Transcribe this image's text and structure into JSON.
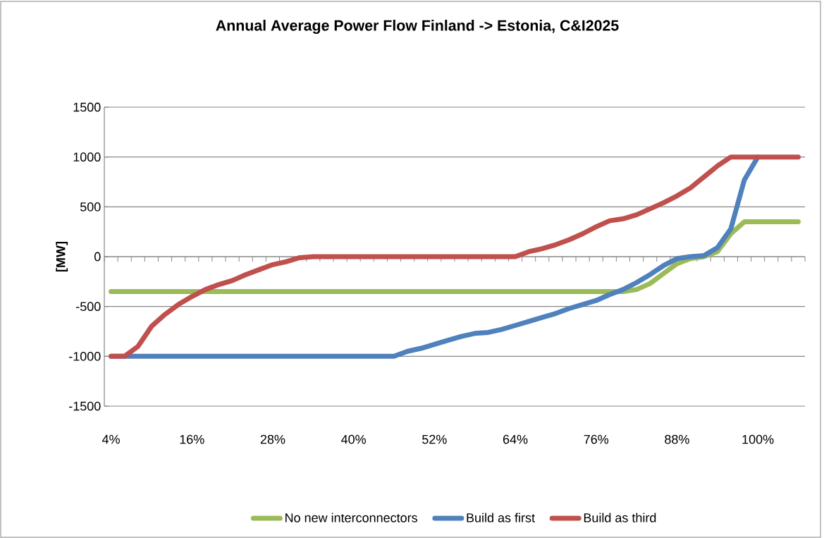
{
  "chart_data": {
    "type": "line",
    "title": "Annual Average Power Flow Finland -> Estonia, C&I2025",
    "ylabel": "[MW]",
    "categories": [
      "4%",
      null,
      null,
      null,
      null,
      null,
      "16%",
      null,
      null,
      null,
      null,
      null,
      "28%",
      null,
      null,
      null,
      null,
      null,
      "40%",
      null,
      null,
      null,
      null,
      null,
      "52%",
      null,
      null,
      null,
      null,
      null,
      "64%",
      null,
      null,
      null,
      null,
      null,
      "76%",
      null,
      null,
      null,
      null,
      null,
      "88%",
      null,
      null,
      null,
      null,
      null,
      "100%",
      null,
      null,
      null
    ],
    "series": [
      {
        "name": "No new interconnectors",
        "color": "#9bbb59",
        "values": [
          -350,
          -350,
          -350,
          -350,
          -350,
          -350,
          -350,
          -350,
          -350,
          -350,
          -350,
          -350,
          -350,
          -350,
          -350,
          -350,
          -350,
          -350,
          -350,
          -350,
          -350,
          -350,
          -350,
          -350,
          -350,
          -350,
          -350,
          -350,
          -350,
          -350,
          -350,
          -350,
          -350,
          -350,
          -350,
          -350,
          -350,
          -350,
          -350,
          -330,
          -270,
          -170,
          -70,
          -20,
          0,
          50,
          230,
          350,
          350,
          350,
          350,
          350
        ]
      },
      {
        "name": "Build as first",
        "color": "#4f81bd",
        "values": [
          -1000,
          -1000,
          -1000,
          -1000,
          -1000,
          -1000,
          -1000,
          -1000,
          -1000,
          -1000,
          -1000,
          -1000,
          -1000,
          -1000,
          -1000,
          -1000,
          -1000,
          -1000,
          -1000,
          -1000,
          -1000,
          -1000,
          -950,
          -920,
          -880,
          -840,
          -800,
          -770,
          -760,
          -730,
          -690,
          -650,
          -610,
          -570,
          -520,
          -480,
          -440,
          -380,
          -330,
          -260,
          -180,
          -90,
          -20,
          0,
          10,
          90,
          280,
          770,
          1000,
          null,
          null,
          null
        ]
      },
      {
        "name": "Build as third",
        "color": "#c0504d",
        "values": [
          -1000,
          -1000,
          -900,
          -700,
          -580,
          -480,
          -400,
          -330,
          -280,
          -240,
          -180,
          -130,
          -80,
          -50,
          -10,
          0,
          0,
          0,
          0,
          0,
          0,
          0,
          0,
          0,
          0,
          0,
          0,
          0,
          0,
          0,
          0,
          50,
          80,
          120,
          170,
          230,
          300,
          360,
          380,
          420,
          480,
          540,
          610,
          690,
          800,
          910,
          1000,
          1000,
          1000,
          1000,
          1000,
          1000
        ]
      }
    ],
    "ylim": [
      -1500,
      1500
    ],
    "yticks": [
      -1500,
      -1000,
      -500,
      0,
      500,
      1000,
      1500
    ],
    "grid": "y",
    "legend": "bottom"
  }
}
